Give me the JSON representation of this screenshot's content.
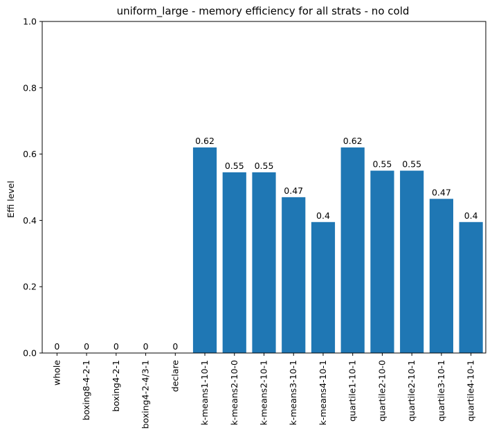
{
  "chart_data": {
    "type": "bar",
    "title": "uniform_large - memory efficiency for all strats - no cold",
    "xlabel": "",
    "ylabel": "Effi level",
    "ylim": [
      0,
      1.0
    ],
    "yticks": [
      "0.0",
      "0.2",
      "0.4",
      "0.6",
      "0.8",
      "1.0"
    ],
    "grid": false,
    "bar_color": "#1f77b4",
    "categories": [
      "whole",
      "boxing8-4-2-1",
      "boxing4-2-1",
      "boxing4-2-4/3-1",
      "declare",
      "k-means1-10-1",
      "k-means2-10-0",
      "k-means2-10-1",
      "k-means3-10-1",
      "k-means4-10-1",
      "quartile1-10-1",
      "quartile2-10-0",
      "quartile2-10-1",
      "quartile3-10-1",
      "quartile4-10-1"
    ],
    "values": [
      0,
      0,
      0,
      0,
      0,
      0.62,
      0.545,
      0.545,
      0.47,
      0.395,
      0.62,
      0.55,
      0.55,
      0.465,
      0.395
    ],
    "data_labels": [
      "0",
      "0",
      "0",
      "0",
      "0",
      "0.62",
      "0.55",
      "0.55",
      "0.47",
      "0.4",
      "0.62",
      "0.55",
      "0.55",
      "0.47",
      "0.4"
    ]
  }
}
